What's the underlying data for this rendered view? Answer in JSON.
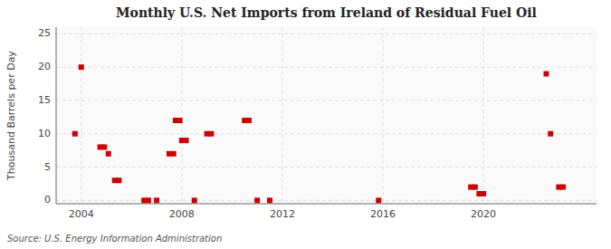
{
  "chart_data": {
    "type": "scatter",
    "title": "Monthly U.S. Net Imports from Ireland of Residual Fuel Oil",
    "ylabel": "Thousand Barrels per Day",
    "annotations": [
      "Source: U.S. Energy Information Administration"
    ],
    "x": [
      2003.75,
      2004.0,
      2004.75,
      2004.92,
      2005.08,
      2005.33,
      2005.5,
      2006.5,
      2006.67,
      2007.0,
      2007.5,
      2007.67,
      2007.75,
      2007.92,
      2008.0,
      2008.17,
      2008.5,
      2009.0,
      2009.17,
      2010.5,
      2010.67,
      2011.0,
      2011.5,
      2015.83,
      2019.5,
      2019.67,
      2019.83,
      2020.0,
      2022.5,
      2022.67,
      2023.0,
      2023.17
    ],
    "values": [
      10,
      20,
      8,
      8,
      7,
      3,
      3,
      0,
      0,
      0,
      7,
      7,
      12,
      12,
      9,
      9,
      0,
      10,
      10,
      12,
      12,
      0,
      0,
      0,
      2,
      2,
      1,
      1,
      19,
      10,
      2,
      2
    ],
    "color": "#cc0000",
    "marker": "square",
    "xlim": [
      2003.0,
      2024.5
    ],
    "ylim": [
      -0.5,
      26
    ],
    "xticks": [
      2004,
      2008,
      2012,
      2016,
      2020
    ],
    "yticks": [
      0,
      5,
      10,
      15,
      20,
      25
    ],
    "grid": true
  }
}
